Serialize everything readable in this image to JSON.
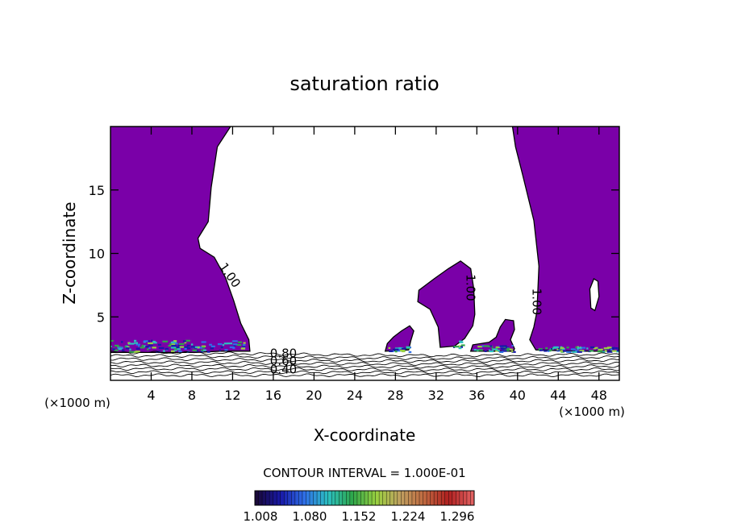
{
  "chart_data": {
    "type": "contour",
    "title": "saturation ratio",
    "xlabel": "X-coordinate",
    "ylabel": "Z-coordinate",
    "x_unit": "(×1000 m)",
    "z_unit": "(×1000 m)",
    "xlim": [
      0,
      50
    ],
    "ylim": [
      0,
      20
    ],
    "x_ticks": [
      4,
      8,
      12,
      16,
      20,
      24,
      28,
      32,
      36,
      40,
      44,
      48
    ],
    "y_ticks": [
      5,
      10,
      15
    ],
    "contour_interval_label": "CONTOUR INTERVAL = 1.000E-01",
    "contour_labels": [
      {
        "text": "1.00",
        "x": 11.4,
        "z": 8.1
      },
      {
        "text": "1.00",
        "x": 35.0,
        "z": 7.3
      },
      {
        "text": "1.00",
        "x": 41.5,
        "z": 6.2
      },
      {
        "text": "0.80",
        "x": 17.0,
        "z": 1.8
      },
      {
        "text": "0.60",
        "x": 17.0,
        "z": 1.2
      },
      {
        "text": "0.40",
        "x": 17.0,
        "z": 0.55
      }
    ],
    "colorbar": {
      "ticks": [
        "1.008",
        "1.080",
        "1.152",
        "1.224",
        "1.296"
      ],
      "colors": [
        "#1a0a3a",
        "#1818a8",
        "#2f70e8",
        "#2cc0c0",
        "#2ea64a",
        "#9ad040",
        "#c0a060",
        "#c06840",
        "#b02020",
        "#e06060"
      ]
    },
    "fill_color": "#7a00a8",
    "regions": [
      {
        "name": "left-cloud",
        "boundary": [
          [
            0,
            2.2
          ],
          [
            0,
            20
          ],
          [
            11.8,
            20
          ],
          [
            10.5,
            18.4
          ],
          [
            9.9,
            15.2
          ],
          [
            9.6,
            12.5
          ],
          [
            8.6,
            11.2
          ],
          [
            8.8,
            10.4
          ],
          [
            10.2,
            9.7
          ],
          [
            11.3,
            8.1
          ],
          [
            12.1,
            6.3
          ],
          [
            12.8,
            4.5
          ],
          [
            13.6,
            3.2
          ],
          [
            13.7,
            2.3
          ],
          [
            10.8,
            2.3
          ],
          [
            8.4,
            2.2
          ]
        ]
      },
      {
        "name": "right-cloud",
        "boundary": [
          [
            39.5,
            20
          ],
          [
            50,
            20
          ],
          [
            50,
            2.3
          ],
          [
            45.8,
            2.3
          ],
          [
            41.8,
            2.4
          ],
          [
            41.2,
            3.2
          ],
          [
            41.6,
            4.2
          ],
          [
            41.9,
            5.4
          ],
          [
            42.1,
            9.0
          ],
          [
            41.6,
            12.6
          ],
          [
            40.5,
            16.2
          ],
          [
            39.8,
            18.4
          ]
        ]
      },
      {
        "name": "center-cloud",
        "boundary": [
          [
            32.4,
            2.6
          ],
          [
            32.2,
            4.2
          ],
          [
            31.4,
            5.6
          ],
          [
            30.2,
            6.2
          ],
          [
            30.3,
            7.1
          ],
          [
            31.8,
            8.0
          ],
          [
            33.2,
            8.8
          ],
          [
            34.4,
            9.4
          ],
          [
            35.4,
            8.8
          ],
          [
            35.7,
            7.2
          ],
          [
            35.8,
            5.2
          ],
          [
            35.6,
            4.3
          ],
          [
            34.8,
            3.3
          ],
          [
            33.8,
            2.7
          ]
        ]
      },
      {
        "name": "small-cloud-a",
        "boundary": [
          [
            27.0,
            2.3
          ],
          [
            27.2,
            2.9
          ],
          [
            27.8,
            3.4
          ],
          [
            28.6,
            3.9
          ],
          [
            29.4,
            4.3
          ],
          [
            29.8,
            3.9
          ],
          [
            29.5,
            3.1
          ],
          [
            29.3,
            2.4
          ]
        ]
      },
      {
        "name": "small-cloud-b",
        "boundary": [
          [
            35.4,
            2.3
          ],
          [
            35.6,
            2.8
          ],
          [
            37.2,
            3.0
          ],
          [
            37.9,
            3.4
          ],
          [
            38.3,
            4.2
          ],
          [
            38.8,
            4.8
          ],
          [
            39.6,
            4.7
          ],
          [
            39.7,
            4.0
          ],
          [
            39.3,
            3.2
          ],
          [
            39.7,
            2.5
          ],
          [
            39.6,
            2.3
          ]
        ]
      }
    ],
    "hole": [
      [
        47.1,
        7.2
      ],
      [
        47.5,
        8.0
      ],
      [
        47.9,
        7.8
      ],
      [
        48.0,
        6.6
      ],
      [
        47.6,
        5.5
      ],
      [
        47.2,
        5.7
      ]
    ]
  }
}
